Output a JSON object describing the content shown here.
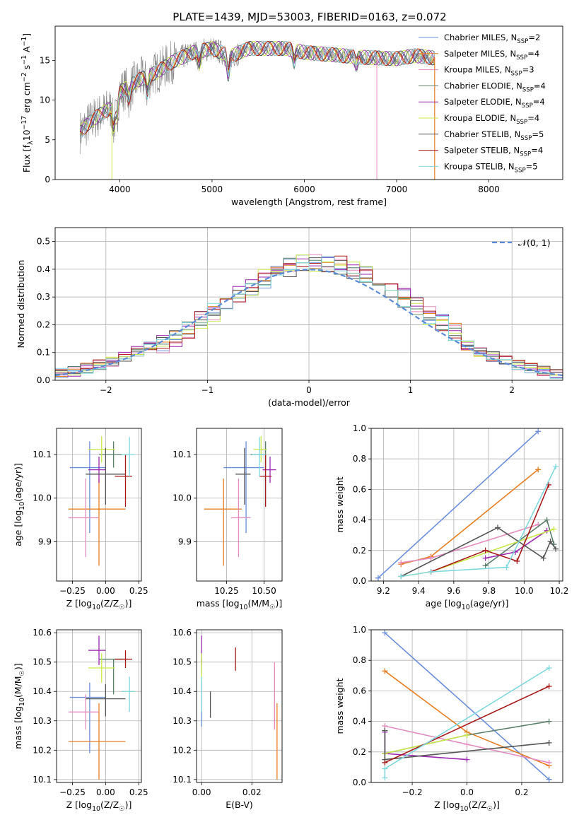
{
  "figure": {
    "title": "PLATE=1439, MJD=53003, FIBERID=0163, z=0.072",
    "colors": {
      "Chabrier MILES": "#6a8fd8",
      "Salpeter MILES": "#e67e22",
      "Kroupa MILES": "#e48bbf",
      "Chabrier ELODIE": "#5a7f6a",
      "Salpeter ELODIE": "#9b27b0",
      "Kroupa ELODIE": "#c9e94a",
      "Chabrier STELIB": "#555555",
      "Salpeter STELIB": "#a81a1a",
      "Kroupa STELIB": "#7fd8de"
    }
  },
  "chart_data": [
    {
      "id": "spectrum",
      "type": "line",
      "xlabel": "wavelength [Angstrom, rest frame]",
      "ylabel": "Flux [f_λ10^-17 erg cm^-2 s^-1 A^-1]",
      "xlim": [
        3300,
        8800
      ],
      "ylim": [
        0,
        19.3
      ],
      "xticks": [
        4000,
        5000,
        6000,
        7000,
        8000
      ],
      "yticks": [
        0,
        5,
        10,
        15
      ],
      "legend_position": "top-right",
      "series": [
        {
          "name": "Chabrier MILES",
          "nssp": "2"
        },
        {
          "name": "Salpeter MILES",
          "nssp": "4"
        },
        {
          "name": "Kroupa MILES",
          "nssp": "3"
        },
        {
          "name": "Chabrier ELODIE",
          "nssp": "4"
        },
        {
          "name": "Salpeter ELODIE",
          "nssp": "4"
        },
        {
          "name": "Kroupa ELODIE",
          "nssp": "4"
        },
        {
          "name": "Chabrier STELIB",
          "nssp": "5"
        },
        {
          "name": "Salpeter STELIB",
          "nssp": "4"
        },
        {
          "name": "Kroupa STELIB",
          "nssp": "5"
        }
      ],
      "continuum": [
        [
          3570,
          6
        ],
        [
          3700,
          7.5
        ],
        [
          3900,
          9
        ],
        [
          4000,
          11
        ],
        [
          4200,
          12.5
        ],
        [
          4400,
          13.5
        ],
        [
          4600,
          15
        ],
        [
          4800,
          16
        ],
        [
          5000,
          16.5
        ],
        [
          5200,
          15.5
        ],
        [
          5400,
          16.5
        ],
        [
          5600,
          16.5
        ],
        [
          5800,
          16.5
        ],
        [
          6000,
          16
        ],
        [
          6200,
          15.8
        ],
        [
          6400,
          15.6
        ],
        [
          6600,
          15.4
        ],
        [
          6800,
          15.3
        ],
        [
          7000,
          15.2
        ],
        [
          7200,
          15.6
        ],
        [
          7400,
          15.3
        ]
      ]
    },
    {
      "id": "residuals",
      "type": "histogram",
      "xlabel": "(data-model)/error",
      "ylabel": "Normed distribution",
      "xlim": [
        -2.5,
        2.5
      ],
      "ylim": [
        0,
        0.55
      ],
      "xticks": [
        -2,
        -1,
        0,
        1,
        2
      ],
      "yticks": [
        0.0,
        0.1,
        0.2,
        0.3,
        0.4,
        0.5
      ],
      "bin_width": 0.125,
      "legend": "𝒩(0, 1)",
      "legend_position": "top-right"
    },
    {
      "id": "age-vs-Z",
      "type": "errorbar",
      "xlabel": "Z [log10(Z/Z☉)]",
      "ylabel": "age [log10(age/yr)]",
      "xlim": [
        -0.37,
        0.27
      ],
      "ylim": [
        9.81,
        10.16
      ],
      "xticks": [
        -0.25,
        0.0,
        0.25
      ],
      "yticks": [
        9.9,
        10.0,
        10.1
      ],
      "points": [
        {
          "series": "Chabrier MILES",
          "x": -0.12,
          "xerr": [
            0.15,
            0.12
          ],
          "y": 10.07,
          "yerr": [
            0.15,
            0.06
          ]
        },
        {
          "series": "Salpeter MILES",
          "x": -0.05,
          "xerr": [
            0.23,
            0.2
          ],
          "y": 9.975,
          "yerr": [
            0.13,
            0.07
          ]
        },
        {
          "series": "Kroupa MILES",
          "x": -0.15,
          "xerr": [
            0.13,
            0.1
          ],
          "y": 9.955,
          "yerr": [
            0.09,
            0.09
          ]
        },
        {
          "series": "Chabrier ELODIE",
          "x": 0.06,
          "xerr": [
            0.11,
            0.07
          ],
          "y": 10.1,
          "yerr": [
            0.03,
            0.03
          ]
        },
        {
          "series": "Salpeter ELODIE",
          "x": -0.05,
          "xerr": [
            0.08,
            0.05
          ],
          "y": 10.065,
          "yerr": [
            0.03,
            0.03
          ]
        },
        {
          "series": "Kroupa ELODIE",
          "x": -0.03,
          "xerr": [
            0.1,
            0.1
          ],
          "y": 10.112,
          "yerr": [
            0.03,
            0.03
          ]
        },
        {
          "series": "Chabrier STELIB",
          "x": 0.0,
          "xerr": [
            0.15,
            0.15
          ],
          "y": 10.055,
          "yerr": [
            0.07,
            0.06
          ]
        },
        {
          "series": "Salpeter STELIB",
          "x": 0.15,
          "xerr": [
            0.08,
            0.05
          ],
          "y": 10.05,
          "yerr": [
            0.07,
            0.05
          ]
        },
        {
          "series": "Kroupa STELIB",
          "x": 0.18,
          "xerr": [
            0.06,
            0.04
          ],
          "y": 10.1,
          "yerr": [
            0.05,
            0.04
          ]
        }
      ]
    },
    {
      "id": "age-vs-mass",
      "type": "errorbar",
      "xlabel": "mass [log10(M/M☉)]",
      "ylabel": "",
      "xlim": [
        10.05,
        10.62
      ],
      "ylim": [
        9.81,
        10.16
      ],
      "xticks": [
        10.25,
        10.5
      ],
      "yticks": [
        9.9,
        10.0,
        10.1
      ],
      "points": [
        {
          "series": "Chabrier MILES",
          "x": 10.38,
          "xerr": [
            0.15,
            0.12
          ],
          "y": 10.07,
          "yerr": [
            0.15,
            0.06
          ]
        },
        {
          "series": "Salpeter MILES",
          "x": 10.23,
          "xerr": [
            0.13,
            0.12
          ],
          "y": 9.975,
          "yerr": [
            0.13,
            0.07
          ]
        },
        {
          "series": "Kroupa MILES",
          "x": 10.33,
          "xerr": [
            0.05,
            0.08
          ],
          "y": 9.955,
          "yerr": [
            0.09,
            0.09
          ]
        },
        {
          "series": "Chabrier ELODIE",
          "x": 10.51,
          "xerr": [
            0.1,
            0.0
          ],
          "y": 10.1,
          "yerr": [
            0.03,
            0.03
          ]
        },
        {
          "series": "Salpeter ELODIE",
          "x": 10.54,
          "xerr": [
            0.05,
            0.04
          ],
          "y": 10.065,
          "yerr": [
            0.03,
            0.03
          ]
        },
        {
          "series": "Kroupa ELODIE",
          "x": 10.48,
          "xerr": [
            0.05,
            0.04
          ],
          "y": 10.112,
          "yerr": [
            0.03,
            0.03
          ]
        },
        {
          "series": "Chabrier STELIB",
          "x": 10.37,
          "xerr": [
            0.06,
            0.04
          ],
          "y": 10.055,
          "yerr": [
            0.07,
            0.06
          ]
        },
        {
          "series": "Salpeter STELIB",
          "x": 10.51,
          "xerr": [
            0.04,
            0.04
          ],
          "y": 10.05,
          "yerr": [
            0.07,
            0.05
          ]
        },
        {
          "series": "Kroupa STELIB",
          "x": 10.47,
          "xerr": [
            0.05,
            0.04
          ],
          "y": 10.1,
          "yerr": [
            0.05,
            0.04
          ]
        }
      ]
    },
    {
      "id": "weight-vs-age",
      "type": "line",
      "xlabel": "age [log10(age/yr)]",
      "ylabel": "mass weight",
      "xlim": [
        9.13,
        10.22
      ],
      "ylim": [
        0,
        1
      ],
      "xticks": [
        9.2,
        9.4,
        9.6,
        9.8,
        10.0,
        10.2
      ],
      "yticks": [
        0.0,
        0.2,
        0.4,
        0.6,
        0.8,
        1.0
      ],
      "series": [
        {
          "name": "Chabrier MILES",
          "x": [
            9.17,
            10.08
          ],
          "y": [
            0.02,
            0.98
          ]
        },
        {
          "name": "Salpeter MILES",
          "x": [
            9.3,
            9.47,
            10.08
          ],
          "y": [
            0.11,
            0.16,
            0.73
          ]
        },
        {
          "name": "Kroupa MILES",
          "x": [
            9.3,
            9.47,
            10.08
          ],
          "y": [
            0.12,
            0.15,
            0.37
          ]
        },
        {
          "name": "Chabrier ELODIE",
          "x": [
            9.78,
            10.13,
            10.17
          ],
          "y": [
            0.1,
            0.4,
            0.24
          ]
        },
        {
          "name": "Salpeter ELODIE",
          "x": [
            9.78,
            9.95,
            10.13
          ],
          "y": [
            0.15,
            0.19,
            0.33
          ]
        },
        {
          "name": "Kroupa ELODIE",
          "x": [
            9.3,
            9.47,
            10.17
          ],
          "y": [
            0.03,
            0.06,
            0.34
          ]
        },
        {
          "name": "Chabrier STELIB",
          "x": [
            9.3,
            9.85,
            10.11,
            10.15,
            10.18
          ],
          "y": [
            0.03,
            0.35,
            0.15,
            0.26,
            0.21
          ]
        },
        {
          "name": "Salpeter STELIB",
          "x": [
            9.47,
            9.78,
            9.96,
            10.14
          ],
          "y": [
            0.06,
            0.2,
            0.13,
            0.63
          ]
        },
        {
          "name": "Kroupa STELIB",
          "x": [
            9.3,
            9.47,
            9.9,
            10.18
          ],
          "y": [
            0.03,
            0.06,
            0.09,
            0.75
          ]
        }
      ]
    },
    {
      "id": "mass-vs-Z",
      "type": "errorbar",
      "xlabel": "Z [log10(Z/Z☉)]",
      "ylabel": "mass [log10(M/M☉)]",
      "xlim": [
        -0.37,
        0.27
      ],
      "ylim": [
        10.09,
        10.61
      ],
      "xticks": [
        -0.25,
        0.0,
        0.25
      ],
      "yticks": [
        10.1,
        10.2,
        10.3,
        10.4,
        10.5,
        10.6
      ],
      "points": [
        {
          "series": "Chabrier MILES",
          "x": -0.12,
          "xerr": [
            0.15,
            0.12
          ],
          "y": 10.38,
          "yerr": [
            0.19,
            0.05
          ]
        },
        {
          "series": "Salpeter MILES",
          "x": -0.05,
          "xerr": [
            0.23,
            0.2
          ],
          "y": 10.23,
          "yerr": [
            0.13,
            0.13
          ]
        },
        {
          "series": "Kroupa MILES",
          "x": -0.15,
          "xerr": [
            0.13,
            0.1
          ],
          "y": 10.33,
          "yerr": [
            0.06,
            0.06
          ]
        },
        {
          "series": "Chabrier ELODIE",
          "x": 0.06,
          "xerr": [
            0.11,
            0.07
          ],
          "y": 10.51,
          "yerr": [
            0.12,
            0.0
          ]
        },
        {
          "series": "Salpeter ELODIE",
          "x": -0.05,
          "xerr": [
            0.08,
            0.05
          ],
          "y": 10.54,
          "yerr": [
            0.05,
            0.05
          ]
        },
        {
          "series": "Kroupa ELODIE",
          "x": -0.03,
          "xerr": [
            0.1,
            0.1
          ],
          "y": 10.48,
          "yerr": [
            0.05,
            0.05
          ]
        },
        {
          "series": "Chabrier STELIB",
          "x": 0.0,
          "xerr": [
            0.15,
            0.15
          ],
          "y": 10.375,
          "yerr": [
            0.06,
            0.05
          ]
        },
        {
          "series": "Salpeter STELIB",
          "x": 0.15,
          "xerr": [
            0.08,
            0.05
          ],
          "y": 10.51,
          "yerr": [
            0.03,
            0.03
          ]
        },
        {
          "series": "Kroupa STELIB",
          "x": 0.18,
          "xerr": [
            0.06,
            0.04
          ],
          "y": 10.4,
          "yerr": [
            0.07,
            0.05
          ]
        }
      ]
    },
    {
      "id": "mass-vs-EBV",
      "type": "errorbar",
      "xlabel": "E(B-V)",
      "ylabel": "",
      "xlim": [
        -0.002,
        0.032
      ],
      "ylim": [
        10.09,
        10.61
      ],
      "xticks": [
        0.0,
        0.02
      ],
      "yticks": [
        10.1,
        10.2,
        10.3,
        10.4,
        10.5,
        10.6
      ],
      "points": [
        {
          "series": "Chabrier MILES",
          "x": 0.0,
          "xerr": [
            0,
            0
          ],
          "y": 10.38,
          "yerr": [
            0.1,
            0.05
          ]
        },
        {
          "series": "Salpeter MILES",
          "x": 0.03,
          "xerr": [
            0,
            0
          ],
          "y": 10.23,
          "yerr": [
            0.13,
            0.13
          ]
        },
        {
          "series": "Kroupa MILES",
          "x": 0.029,
          "xerr": [
            0,
            0
          ],
          "y": 10.33,
          "yerr": [
            0.06,
            0.17
          ]
        },
        {
          "series": "Chabrier ELODIE",
          "x": 0.0,
          "xerr": [
            0,
            0
          ],
          "y": 10.51,
          "yerr": [
            0.05,
            0.0
          ]
        },
        {
          "series": "Salpeter ELODIE",
          "x": 0.0,
          "xerr": [
            0,
            0
          ],
          "y": 10.54,
          "yerr": [
            0.05,
            0.05
          ]
        },
        {
          "series": "Kroupa ELODIE",
          "x": 0.0,
          "xerr": [
            0,
            0
          ],
          "y": 10.48,
          "yerr": [
            0.05,
            0.05
          ]
        },
        {
          "series": "Chabrier STELIB",
          "x": 0.0035,
          "xerr": [
            0,
            0
          ],
          "y": 10.35,
          "yerr": [
            0.04,
            0.05
          ]
        },
        {
          "series": "Salpeter STELIB",
          "x": 0.0135,
          "xerr": [
            0,
            0
          ],
          "y": 10.51,
          "yerr": [
            0.04,
            0.04
          ]
        },
        {
          "series": "Kroupa STELIB",
          "x": 0.0,
          "xerr": [
            0,
            0
          ],
          "y": 10.4,
          "yerr": [
            0.07,
            0.05
          ]
        }
      ]
    },
    {
      "id": "weight-vs-Z",
      "type": "line",
      "xlabel": "Z [log10(Z/Z☉)]",
      "ylabel": "mass weight",
      "xlim": [
        -0.35,
        0.35
      ],
      "ylim": [
        0,
        1
      ],
      "xticks": [
        -0.2,
        0.0,
        0.2
      ],
      "yticks": [
        0.0,
        0.2,
        0.4,
        0.6,
        0.8,
        1.0
      ],
      "series": [
        {
          "name": "Chabrier MILES",
          "x": [
            -0.3,
            0.3
          ],
          "y": [
            0.98,
            0.02
          ]
        },
        {
          "name": "Salpeter MILES",
          "x": [
            -0.3,
            0.0,
            0.3
          ],
          "y": [
            0.73,
            0.33,
            0.11
          ]
        },
        {
          "name": "Kroupa MILES",
          "x": [
            -0.3,
            0.0,
            0.3
          ],
          "y": [
            0.37,
            0.25,
            0.13
          ]
        },
        {
          "name": "Chabrier ELODIE",
          "x": [
            -0.3,
            0.0,
            0.3
          ],
          "y": [
            0.19,
            0.31,
            0.4
          ]
        },
        {
          "name": "Salpeter ELODIE",
          "x": [
            -0.3,
            -0.3,
            0.0
          ],
          "y": [
            0.33,
            0.19,
            0.15
          ]
        },
        {
          "name": "Kroupa ELODIE",
          "x": [
            -0.3,
            0.0
          ],
          "y": [
            0.19,
            0.31
          ]
        },
        {
          "name": "Chabrier STELIB",
          "x": [
            -0.3,
            -0.3,
            0.3
          ],
          "y": [
            0.34,
            0.15,
            0.26
          ]
        },
        {
          "name": "Salpeter STELIB",
          "x": [
            -0.3,
            0.3
          ],
          "y": [
            0.13,
            0.63
          ]
        },
        {
          "name": "Kroupa STELIB",
          "x": [
            -0.3,
            -0.3,
            0.3
          ],
          "y": [
            0.03,
            0.09,
            0.75
          ]
        }
      ]
    }
  ]
}
